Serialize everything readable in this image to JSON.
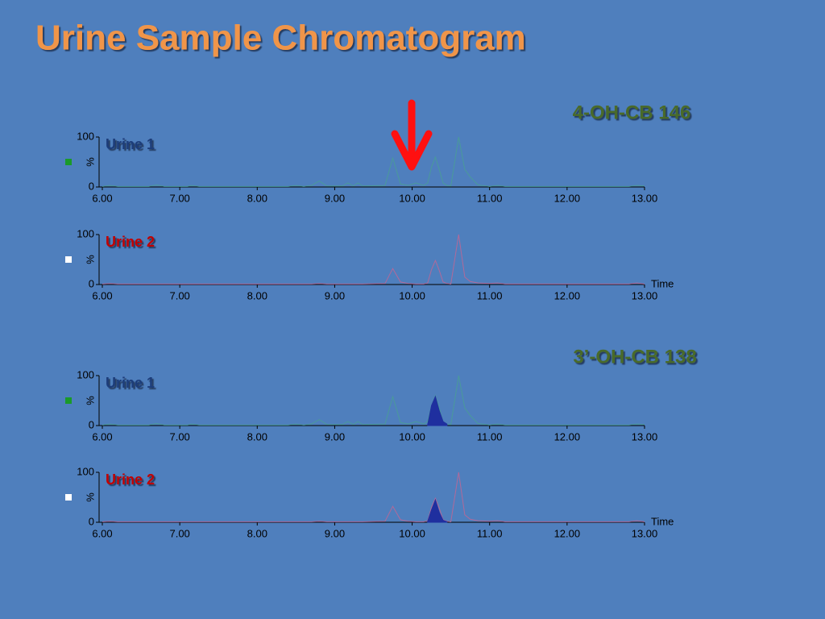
{
  "title": "Urine Sample Chromatogram",
  "headings": [
    "4-OH-CB 146",
    "3’-OH-CB 138"
  ],
  "chart_data": [
    {
      "type": "line",
      "title": "Urine 1",
      "title_color": "#1f3d7a",
      "marker_color": "#1a9a2a",
      "ylabel": "%",
      "x": [
        6.0,
        6.1,
        6.2,
        6.6,
        6.7,
        6.8,
        7.1,
        7.15,
        7.25,
        8.4,
        8.5,
        8.6,
        8.7,
        8.8,
        8.9,
        9.1,
        9.17,
        9.24,
        9.3,
        9.36,
        9.65,
        9.75,
        9.85,
        9.95,
        10.05,
        10.15,
        10.2,
        10.25,
        10.3,
        10.35,
        10.4,
        10.45,
        10.5,
        10.6,
        10.68,
        10.75,
        10.85,
        11.0,
        11.1,
        11.2,
        12.8,
        12.9,
        13.0
      ],
      "series": [
        {
          "color": "#4a9a9a",
          "values": [
            1,
            3,
            1,
            1,
            4,
            1,
            1,
            3,
            1,
            1,
            3,
            1,
            3,
            12,
            2,
            2,
            8,
            2,
            8,
            2,
            3,
            58,
            6,
            3,
            8,
            3,
            8,
            40,
            60,
            35,
            8,
            3,
            2,
            100,
            35,
            20,
            4,
            1,
            3,
            1,
            1,
            3,
            2
          ]
        }
      ],
      "xlim": [
        6,
        13
      ],
      "xticks": [
        {
          "value": 6,
          "label": "6.00"
        },
        {
          "value": 7,
          "label": "7.00"
        },
        {
          "value": 8,
          "label": "8.00"
        },
        {
          "value": 9,
          "label": "9.00"
        },
        {
          "value": 10,
          "label": "10.00"
        },
        {
          "value": 11,
          "label": "11.00"
        },
        {
          "value": 12,
          "label": "12.00"
        },
        {
          "value": 13,
          "label": "13.00"
        }
      ],
      "ylim": [
        0,
        100
      ],
      "yticks": [
        0,
        100
      ]
    },
    {
      "type": "line",
      "title": "Urine 2",
      "title_color": "#c00000",
      "marker_color": "#ffffff",
      "ylabel": "%",
      "xlabel": "Time",
      "x": [
        6.0,
        6.1,
        6.2,
        6.6,
        6.7,
        6.8,
        7.1,
        7.15,
        7.25,
        8.4,
        8.5,
        8.6,
        8.7,
        8.8,
        8.9,
        9.1,
        9.17,
        9.24,
        9.3,
        9.36,
        9.65,
        9.75,
        9.85,
        9.95,
        10.05,
        10.15,
        10.2,
        10.25,
        10.3,
        10.35,
        10.4,
        10.45,
        10.5,
        10.6,
        10.68,
        10.75,
        10.85,
        11.0,
        11.1,
        11.2,
        12.8,
        12.9,
        13.0
      ],
      "series": [
        {
          "color": "#b06a9a",
          "values": [
            1,
            2,
            1,
            1,
            1,
            1,
            1,
            1,
            1,
            1,
            1,
            1,
            1,
            2,
            1,
            1,
            1,
            1,
            1,
            1,
            2,
            32,
            5,
            2,
            1,
            1,
            3,
            30,
            48,
            28,
            5,
            2,
            1,
            100,
            15,
            6,
            3,
            2,
            3,
            1,
            1,
            3,
            1
          ]
        }
      ],
      "xlim": [
        6,
        13
      ],
      "xticks": [
        {
          "value": 6,
          "label": "6.00"
        },
        {
          "value": 7,
          "label": "7.00"
        },
        {
          "value": 8,
          "label": "8.00"
        },
        {
          "value": 9,
          "label": "9.00"
        },
        {
          "value": 10,
          "label": "10.00"
        },
        {
          "value": 11,
          "label": "11.00"
        },
        {
          "value": 12,
          "label": "12.00"
        },
        {
          "value": 13,
          "label": "13.00"
        }
      ],
      "ylim": [
        0,
        100
      ],
      "yticks": [
        0,
        100
      ]
    },
    {
      "type": "line",
      "title": "Urine 1",
      "title_color": "#1f3d7a",
      "marker_color": "#1a9a2a",
      "ylabel": "%",
      "x": [
        6.0,
        6.1,
        6.2,
        6.6,
        6.7,
        6.8,
        7.1,
        7.15,
        7.25,
        8.4,
        8.5,
        8.6,
        8.7,
        8.8,
        8.9,
        9.1,
        9.17,
        9.24,
        9.3,
        9.36,
        9.65,
        9.75,
        9.85,
        9.95,
        10.05,
        10.15,
        10.2,
        10.25,
        10.3,
        10.35,
        10.4,
        10.45,
        10.5,
        10.6,
        10.68,
        10.75,
        10.85,
        11.0,
        11.1,
        11.2,
        12.8,
        12.9,
        13.0
      ],
      "series": [
        {
          "color": "#4a9a9a",
          "values": [
            1,
            3,
            1,
            1,
            4,
            1,
            1,
            3,
            1,
            1,
            3,
            1,
            3,
            12,
            2,
            2,
            8,
            2,
            8,
            2,
            3,
            58,
            6,
            3,
            8,
            3,
            8,
            40,
            60,
            35,
            8,
            3,
            2,
            100,
            35,
            20,
            4,
            1,
            3,
            1,
            1,
            3,
            2
          ]
        },
        {
          "color": "#1f2f9f",
          "fill": true,
          "values": [
            null,
            null,
            null,
            null,
            null,
            null,
            null,
            null,
            null,
            null,
            null,
            null,
            null,
            null,
            null,
            null,
            null,
            null,
            null,
            null,
            null,
            null,
            null,
            null,
            null,
            null,
            2,
            40,
            58,
            30,
            8,
            3,
            null,
            null,
            null,
            null,
            null,
            null,
            null,
            null,
            null,
            null,
            null
          ]
        }
      ],
      "xlim": [
        6,
        13
      ],
      "xticks": [
        {
          "value": 6,
          "label": "6.00"
        },
        {
          "value": 7,
          "label": "7.00"
        },
        {
          "value": 8,
          "label": "8.00"
        },
        {
          "value": 9,
          "label": "9.00"
        },
        {
          "value": 10,
          "label": "10.00"
        },
        {
          "value": 11,
          "label": "11.00"
        },
        {
          "value": 12,
          "label": "12.00"
        },
        {
          "value": 13,
          "label": "13.00"
        }
      ],
      "ylim": [
        0,
        100
      ],
      "yticks": [
        0,
        100
      ]
    },
    {
      "type": "line",
      "title": "Urine 2",
      "title_color": "#c00000",
      "marker_color": "#ffffff",
      "ylabel": "%",
      "xlabel": "Time",
      "x": [
        6.0,
        6.1,
        6.2,
        6.6,
        6.7,
        6.8,
        7.1,
        7.15,
        7.25,
        8.4,
        8.5,
        8.6,
        8.7,
        8.8,
        8.9,
        9.1,
        9.17,
        9.24,
        9.3,
        9.36,
        9.65,
        9.75,
        9.85,
        9.95,
        10.05,
        10.15,
        10.2,
        10.25,
        10.3,
        10.35,
        10.4,
        10.45,
        10.5,
        10.6,
        10.68,
        10.75,
        10.85,
        11.0,
        11.1,
        11.2,
        12.8,
        12.9,
        13.0
      ],
      "series": [
        {
          "color": "#b06a9a",
          "values": [
            1,
            2,
            1,
            1,
            1,
            1,
            1,
            1,
            1,
            1,
            1,
            1,
            1,
            2,
            1,
            1,
            1,
            1,
            1,
            1,
            2,
            32,
            5,
            2,
            1,
            1,
            3,
            30,
            48,
            28,
            5,
            2,
            1,
            100,
            15,
            6,
            3,
            2,
            3,
            1,
            1,
            3,
            1
          ]
        },
        {
          "color": "#1f2f9f",
          "fill": true,
          "values": [
            null,
            null,
            null,
            null,
            null,
            null,
            null,
            null,
            null,
            null,
            null,
            null,
            null,
            null,
            null,
            null,
            null,
            null,
            null,
            null,
            null,
            null,
            null,
            null,
            null,
            null,
            2,
            25,
            45,
            20,
            4,
            1,
            null,
            null,
            null,
            null,
            null,
            null,
            null,
            null,
            null,
            null,
            null
          ]
        }
      ],
      "xlim": [
        6,
        13
      ],
      "xticks": [
        {
          "value": 6,
          "label": "6.00"
        },
        {
          "value": 7,
          "label": "7.00"
        },
        {
          "value": 8,
          "label": "8.00"
        },
        {
          "value": 9,
          "label": "9.00"
        },
        {
          "value": 10,
          "label": "10.00"
        },
        {
          "value": 11,
          "label": "11.00"
        },
        {
          "value": 12,
          "label": "12.00"
        },
        {
          "value": 13,
          "label": "13.00"
        }
      ],
      "ylim": [
        0,
        100
      ],
      "yticks": [
        0,
        100
      ]
    }
  ]
}
